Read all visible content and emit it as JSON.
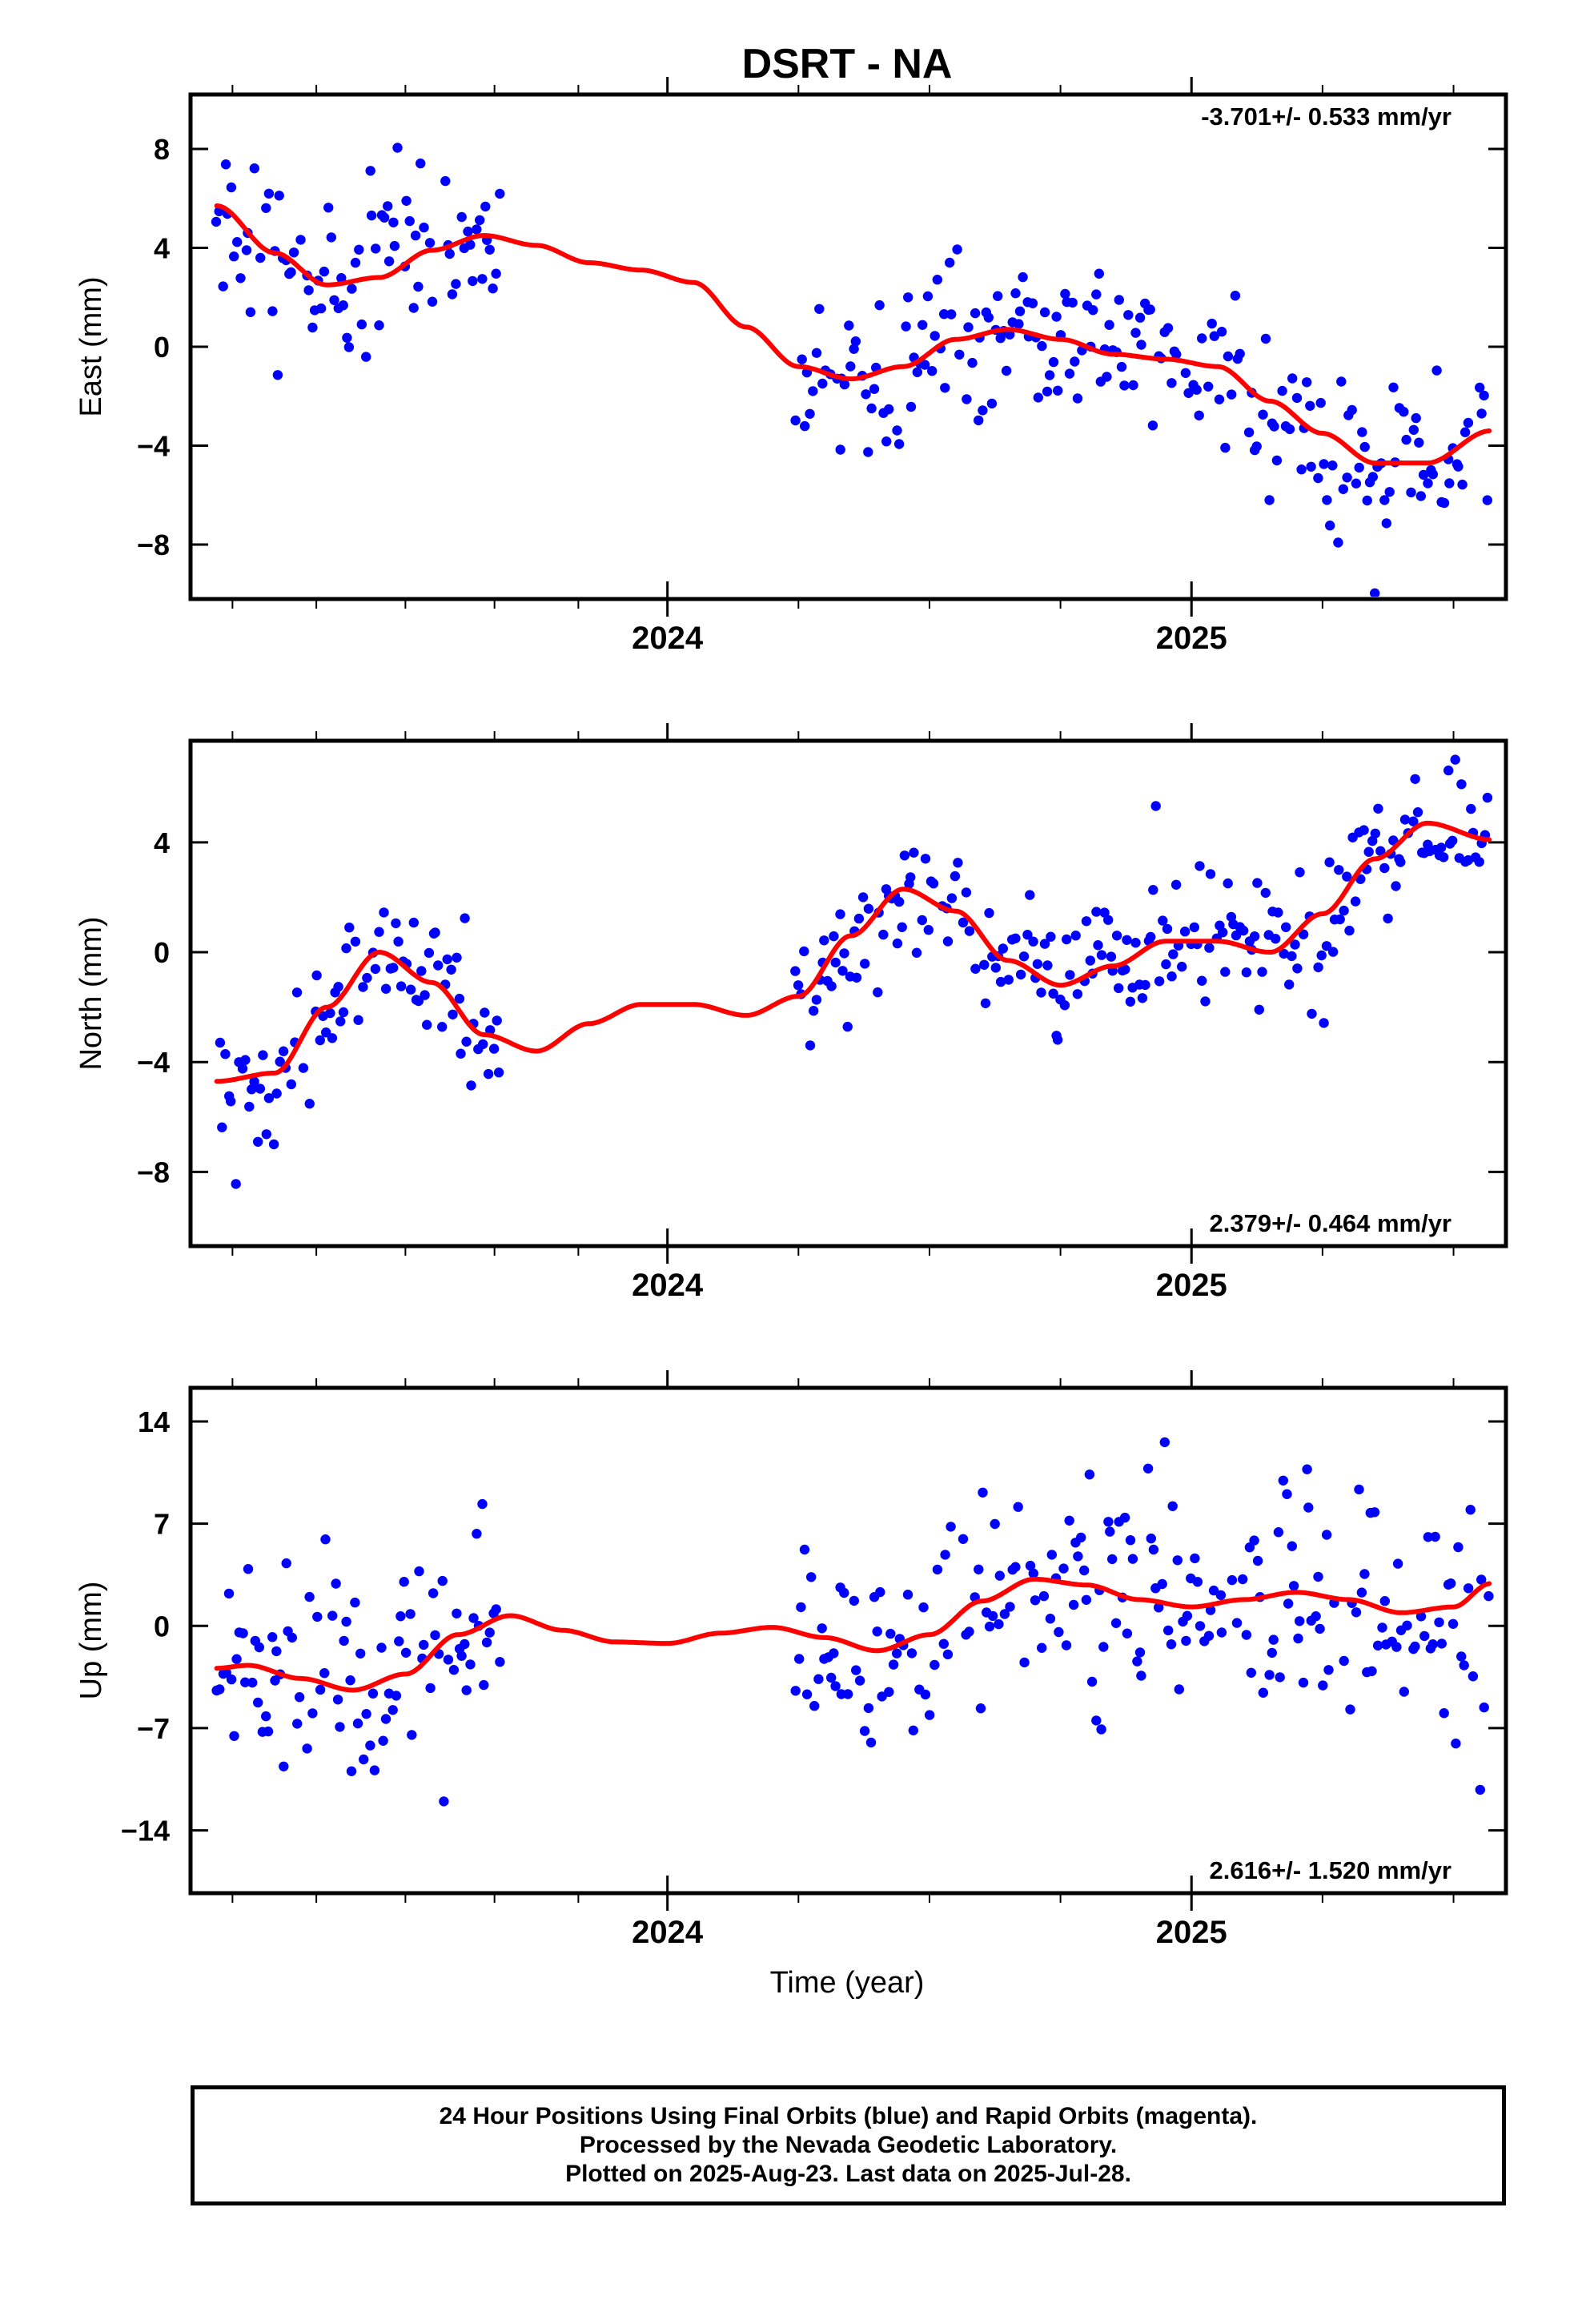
{
  "title": "DSRT - NA",
  "xlabel": "Time (year)",
  "footer": {
    "line1": "24 Hour Positions Using Final Orbits (blue) and Rapid Orbits (magenta).",
    "line2": "Processed by the Nevada Geodetic Laboratory.",
    "line3": "Plotted on 2025-Aug-23. Last data on 2025-Jul-28."
  },
  "colors": {
    "points": "#0000ff",
    "model": "#ff0000",
    "frame": "#000000"
  },
  "chart_data": [
    {
      "type": "scatter",
      "panel": "east",
      "ylabel": "East (mm)",
      "rate_text": "-3.701+/- 0.533 mm/yr",
      "rate_position": "top-right",
      "xlim": [
        2023.09,
        2025.6
      ],
      "ylim": [
        -10.2,
        10.2
      ],
      "x_ticks": [
        2024,
        2025
      ],
      "x_minor_ticks": [
        2023.17,
        2023.33,
        2023.5,
        2023.67,
        2023.83,
        2024.25,
        2024.5,
        2024.75,
        2025.25,
        2025.5
      ],
      "y_ticks": [
        8,
        4,
        0,
        -4,
        -8
      ],
      "y_tick_labels": [
        "8",
        "4",
        "0",
        "−4",
        "−8"
      ],
      "grid": false,
      "gap": [
        2023.68,
        2024.24
      ],
      "model_nodes": [
        [
          2023.14,
          5.7
        ],
        [
          2023.25,
          3.8
        ],
        [
          2023.35,
          2.5
        ],
        [
          2023.45,
          2.8
        ],
        [
          2023.55,
          3.9
        ],
        [
          2023.65,
          4.5
        ],
        [
          2023.75,
          4.1
        ],
        [
          2023.85,
          3.4
        ],
        [
          2023.95,
          3.1
        ],
        [
          2024.05,
          2.6
        ],
        [
          2024.15,
          0.8
        ],
        [
          2024.25,
          -0.8
        ],
        [
          2024.35,
          -1.3
        ],
        [
          2024.45,
          -0.8
        ],
        [
          2024.55,
          0.3
        ],
        [
          2024.65,
          0.7
        ],
        [
          2024.75,
          0.3
        ],
        [
          2024.85,
          -0.3
        ],
        [
          2024.95,
          -0.5
        ],
        [
          2025.05,
          -0.8
        ],
        [
          2025.15,
          -2.2
        ],
        [
          2025.25,
          -3.5
        ],
        [
          2025.35,
          -4.7
        ],
        [
          2025.45,
          -4.7
        ],
        [
          2025.57,
          -3.4
        ]
      ],
      "scatter_sd": 1.5
    },
    {
      "type": "scatter",
      "panel": "north",
      "ylabel": "North (mm)",
      "rate_text": "2.379+/- 0.464 mm/yr",
      "rate_position": "bottom-right",
      "xlim": [
        2023.09,
        2025.6
      ],
      "ylim": [
        -10.7,
        7.7
      ],
      "x_ticks": [
        2024,
        2025
      ],
      "x_minor_ticks": [
        2023.17,
        2023.33,
        2023.5,
        2023.67,
        2023.83,
        2024.25,
        2024.5,
        2024.75,
        2025.25,
        2025.5
      ],
      "y_ticks": [
        4,
        0,
        -4,
        -8
      ],
      "y_tick_labels": [
        "4",
        "0",
        "−4",
        "−8"
      ],
      "grid": false,
      "gap": [
        2023.68,
        2024.24
      ],
      "model_nodes": [
        [
          2023.14,
          -4.7
        ],
        [
          2023.25,
          -4.4
        ],
        [
          2023.35,
          -2.0
        ],
        [
          2023.45,
          0.0
        ],
        [
          2023.55,
          -1.1
        ],
        [
          2023.65,
          -3.0
        ],
        [
          2023.75,
          -3.6
        ],
        [
          2023.85,
          -2.6
        ],
        [
          2023.95,
          -1.9
        ],
        [
          2024.05,
          -1.9
        ],
        [
          2024.15,
          -2.3
        ],
        [
          2024.25,
          -1.6
        ],
        [
          2024.35,
          0.6
        ],
        [
          2024.45,
          2.3
        ],
        [
          2024.55,
          1.5
        ],
        [
          2024.65,
          -0.3
        ],
        [
          2024.75,
          -1.2
        ],
        [
          2024.85,
          -0.5
        ],
        [
          2024.95,
          0.4
        ],
        [
          2025.05,
          0.4
        ],
        [
          2025.15,
          0.0
        ],
        [
          2025.25,
          1.4
        ],
        [
          2025.35,
          3.4
        ],
        [
          2025.45,
          4.7
        ],
        [
          2025.57,
          4.1
        ]
      ],
      "scatter_sd": 1.3
    },
    {
      "type": "scatter",
      "panel": "up",
      "ylabel": "Up (mm)",
      "rate_text": "2.616+/- 1.520 mm/yr",
      "rate_position": "bottom-right",
      "xlim": [
        2023.09,
        2025.6
      ],
      "ylim": [
        -18.3,
        16.3
      ],
      "x_ticks": [
        2024,
        2025
      ],
      "x_minor_ticks": [
        2023.17,
        2023.33,
        2023.5,
        2023.67,
        2023.83,
        2024.25,
        2024.5,
        2024.75,
        2025.25,
        2025.5
      ],
      "y_ticks": [
        14,
        7,
        0,
        -7,
        -14
      ],
      "y_tick_labels": [
        "14",
        "7",
        "0",
        "−7",
        "−14"
      ],
      "grid": false,
      "gap": [
        2023.68,
        2024.24
      ],
      "model_nodes": [
        [
          2023.14,
          -2.9
        ],
        [
          2023.2,
          -2.7
        ],
        [
          2023.3,
          -3.6
        ],
        [
          2023.4,
          -4.4
        ],
        [
          2023.5,
          -3.3
        ],
        [
          2023.6,
          -0.6
        ],
        [
          2023.7,
          0.7
        ],
        [
          2023.8,
          -0.3
        ],
        [
          2023.9,
          -1.1
        ],
        [
          2024.0,
          -1.2
        ],
        [
          2024.1,
          -0.5
        ],
        [
          2024.2,
          -0.1
        ],
        [
          2024.3,
          -0.8
        ],
        [
          2024.4,
          -1.7
        ],
        [
          2024.5,
          -0.6
        ],
        [
          2024.6,
          1.7
        ],
        [
          2024.7,
          3.2
        ],
        [
          2024.8,
          2.8
        ],
        [
          2024.9,
          1.8
        ],
        [
          2025.0,
          1.3
        ],
        [
          2025.1,
          1.8
        ],
        [
          2025.2,
          2.3
        ],
        [
          2025.3,
          1.8
        ],
        [
          2025.4,
          0.9
        ],
        [
          2025.5,
          1.3
        ],
        [
          2025.57,
          2.9
        ]
      ],
      "scatter_sd": 3.8
    }
  ]
}
